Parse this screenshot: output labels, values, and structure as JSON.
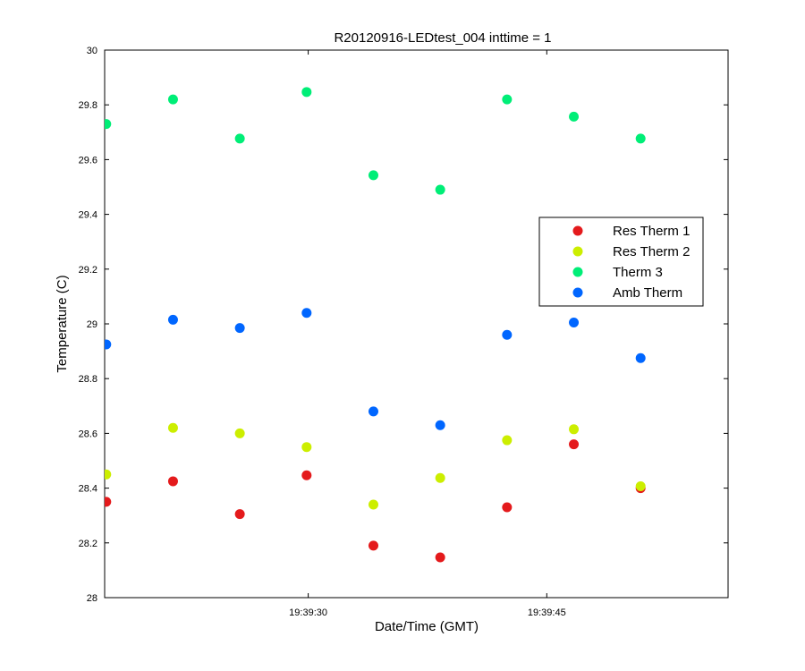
{
  "chart_data": {
    "type": "scatter",
    "title": "R20120916-LEDtest_004 inttime = 1",
    "xlabel": "Date/Time (GMT)",
    "ylabel": "Temperature (C)",
    "x_unit": "seconds after 19:39:00",
    "xlim": [
      17.2,
      56.4
    ],
    "ylim": [
      28,
      30
    ],
    "yticks": [
      28,
      28.2,
      28.4,
      28.6,
      28.8,
      29,
      29.2,
      29.4,
      29.6,
      29.8,
      30
    ],
    "ytick_labels": [
      "28",
      "28.2",
      "28.4",
      "28.6",
      "28.8",
      "29",
      "29.2",
      "29.4",
      "29.6",
      "29.8",
      "30"
    ],
    "xticks": [
      30,
      45
    ],
    "xtick_labels": [
      "19:39:30",
      "19:39:45"
    ],
    "grid": false,
    "legend_position": "center-right",
    "x": [
      17.3,
      21.5,
      25.7,
      29.9,
      34.1,
      38.3,
      42.5,
      46.7,
      50.9
    ],
    "series": [
      {
        "name": "Res Therm 1",
        "color": "#e41a1c",
        "values": [
          28.35,
          28.425,
          28.305,
          28.447,
          28.19,
          28.147,
          28.33,
          28.56,
          28.4
        ]
      },
      {
        "name": "Res Therm 2",
        "color": "#ccee00",
        "values": [
          28.45,
          28.62,
          28.6,
          28.55,
          28.34,
          28.437,
          28.575,
          28.615,
          28.407
        ]
      },
      {
        "name": "Therm 3",
        "color": "#00ee77",
        "values": [
          29.73,
          29.82,
          29.677,
          29.847,
          29.543,
          29.49,
          29.82,
          29.757,
          29.677
        ]
      },
      {
        "name": "Amb Therm",
        "color": "#0066ff",
        "values": [
          28.925,
          29.015,
          28.985,
          29.04,
          28.68,
          28.63,
          28.96,
          29.005,
          28.875
        ]
      }
    ]
  }
}
